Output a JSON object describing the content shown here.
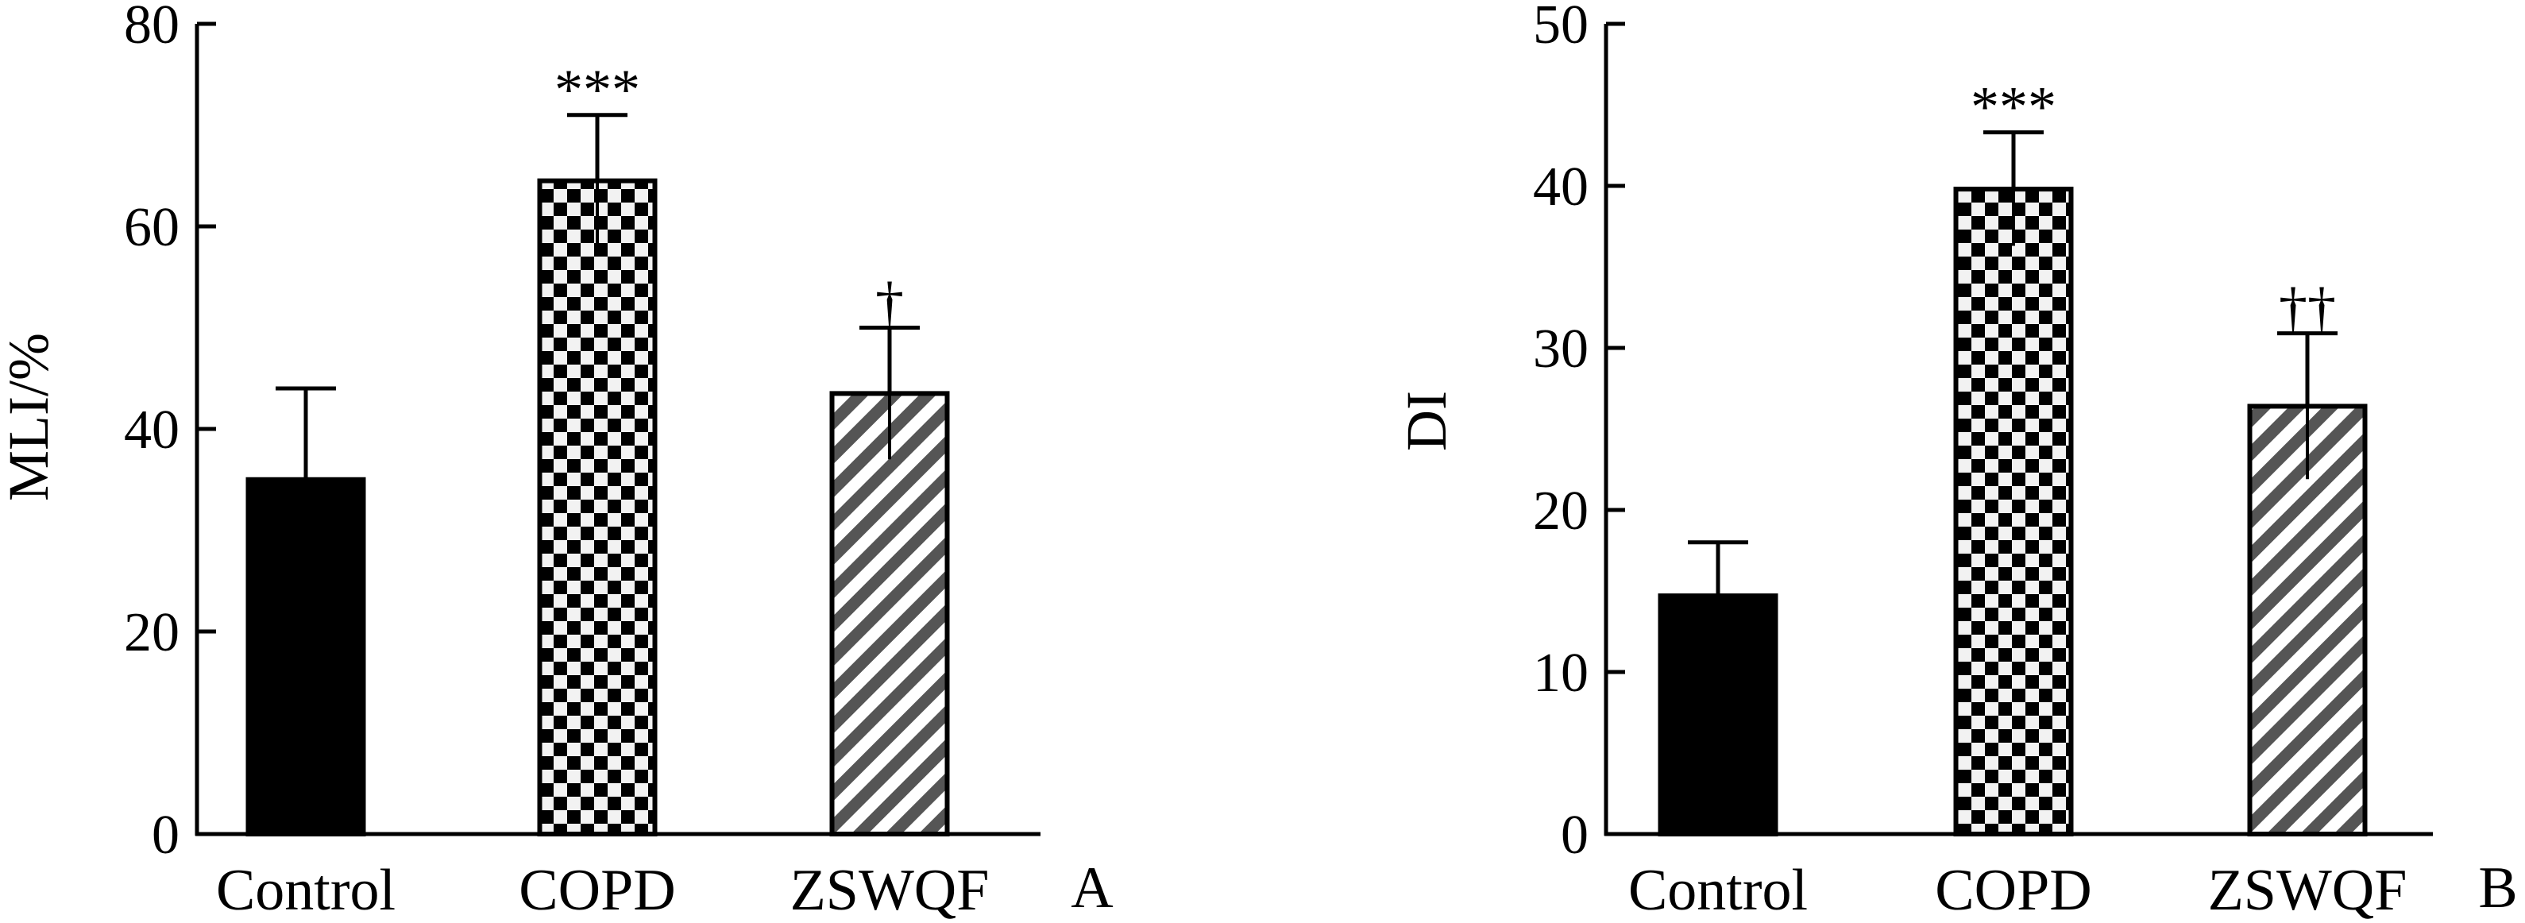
{
  "chart_data": [
    {
      "panel": "A",
      "type": "bar",
      "title": "",
      "xlabel": "",
      "ylabel": "MLI/%",
      "ylim": [
        0,
        80
      ],
      "yticks": [
        0,
        20,
        40,
        60,
        80
      ],
      "categories": [
        "Control",
        "COPD",
        "ZSWQF"
      ],
      "values": [
        35,
        64.5,
        43.5
      ],
      "errors": [
        9,
        6.5,
        6.5
      ],
      "fills": [
        "solid",
        "checker",
        "hatch"
      ],
      "significance": [
        "",
        "***",
        "†"
      ]
    },
    {
      "panel": "B",
      "type": "bar",
      "title": "",
      "xlabel": "",
      "ylabel": "DI",
      "ylim": [
        0,
        50
      ],
      "yticks": [
        0,
        10,
        20,
        30,
        40,
        50
      ],
      "categories": [
        "Control",
        "COPD",
        "ZSWQF"
      ],
      "values": [
        14.7,
        39.8,
        26.4
      ],
      "errors": [
        3.3,
        3.5,
        4.5
      ],
      "fills": [
        "solid",
        "checker",
        "hatch"
      ],
      "significance": [
        "",
        "***",
        "††"
      ]
    }
  ],
  "colors": {
    "axis": "#000000",
    "solid": "#000000",
    "checker_dark": "#000000",
    "checker_light": "#f2f2f2",
    "hatch_dark": "#555555",
    "hatch_light": "#ffffff"
  }
}
